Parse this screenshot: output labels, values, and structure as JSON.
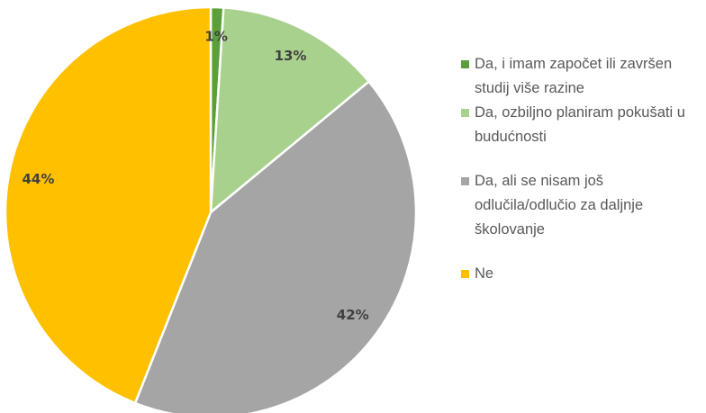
{
  "chart_data": {
    "type": "pie",
    "categories": [
      "Da, i imam započet ili završen studij više razine",
      "Da, ozbiljno planiram pokušati u budućnosti",
      "Da, ali se nisam još odlučila/odlučio za daljnje školovanje",
      "Ne"
    ],
    "values": [
      1,
      13,
      42,
      44
    ],
    "value_labels": [
      "1%",
      "13%",
      "42%",
      "44%"
    ],
    "colors": [
      "#5b9f3c",
      "#a9d18e",
      "#a5a5a5",
      "#ffc000"
    ],
    "legend": "right"
  }
}
